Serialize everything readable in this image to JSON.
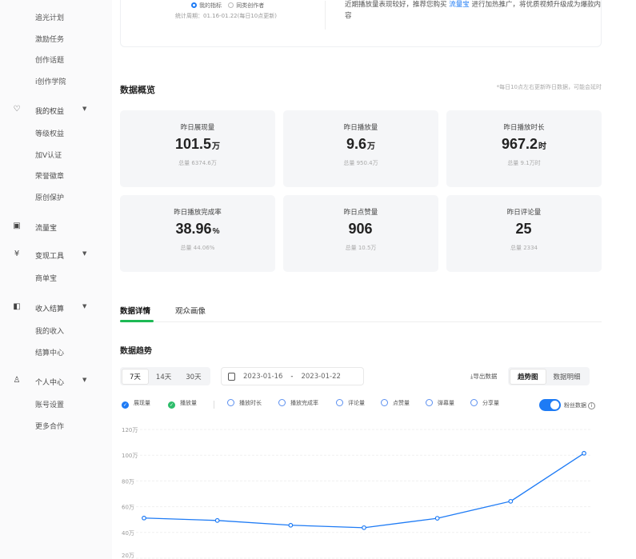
{
  "sidebar": {
    "sub_items_top": [
      "追光计划",
      "激励任务",
      "创作话题",
      "i创作学院"
    ],
    "groups": [
      {
        "label": "我的权益",
        "icon": "diamond-icon",
        "expandable": true,
        "items": [
          "等级权益",
          "加V认证",
          "荣誉徽章",
          "原创保护"
        ]
      },
      {
        "label": "流量宝",
        "icon": "ticket-icon",
        "expandable": false,
        "items": []
      },
      {
        "label": "变现工具",
        "icon": "yen-card-icon",
        "expandable": true,
        "items": [
          "商单宝"
        ]
      },
      {
        "label": "收入结算",
        "icon": "wallet-icon",
        "expandable": true,
        "items": [
          "我的收入",
          "结算中心"
        ]
      },
      {
        "label": "个人中心",
        "icon": "user-icon",
        "expandable": true,
        "items": [
          "账号设置",
          "更多合作"
        ]
      }
    ]
  },
  "top_card": {
    "radio_selected": "我的指标",
    "radio_other": "同类创作者",
    "period": "统计周期：01.16-01.22(每日10点更新)",
    "tip_before": "近期播放量表现较好，推荐您购买",
    "tip_link": "流量宝",
    "tip_after": "进行加热推广，将优质视频升级成为爆款内容"
  },
  "overview": {
    "title": "数据概览",
    "note": "*每日10点左右更新昨日数据，可能会延时",
    "stats": [
      {
        "label": "昨日展现量",
        "value": "101.5",
        "unit": "万",
        "total": "总量 6374.6万"
      },
      {
        "label": "昨日播放量",
        "value": "9.6",
        "unit": "万",
        "total": "总量 950.4万"
      },
      {
        "label": "昨日播放时长",
        "value": "967.2",
        "unit": "时",
        "total": "总量 9.1万时"
      },
      {
        "label": "昨日播放完成率",
        "value": "38.96",
        "unit": "%",
        "total": "总量 44.06%"
      },
      {
        "label": "昨日点赞量",
        "value": "906",
        "unit": "",
        "total": "总量 10.5万"
      },
      {
        "label": "昨日评论量",
        "value": "25",
        "unit": "",
        "total": "总量 2334"
      }
    ]
  },
  "tabs": [
    {
      "label": "数据详情",
      "active": true
    },
    {
      "label": "观众画像",
      "active": false
    }
  ],
  "trend": {
    "title": "数据趋势",
    "ranges": [
      "7天",
      "14天",
      "30天"
    ],
    "range_selected": "7天",
    "date_start": "2023-01-16",
    "date_sep": "-",
    "date_end": "2023-01-22",
    "export": "导出数据",
    "views": [
      "趋势图",
      "数据明细"
    ],
    "view_selected": "趋势图",
    "metrics": [
      {
        "label": "展现量",
        "checked": true,
        "color": "#1e7bf5"
      },
      {
        "label": "播放量",
        "checked": true,
        "color": "#2ebd6b"
      },
      {
        "label": "播放时长",
        "checked": false
      },
      {
        "label": "播放完成率",
        "checked": false
      },
      {
        "label": "评论量",
        "checked": false
      },
      {
        "label": "点赞量",
        "checked": false
      },
      {
        "label": "弹幕量",
        "checked": false
      },
      {
        "label": "分享量",
        "checked": false
      }
    ],
    "fans_toggle": {
      "label": "粉丝数据",
      "on": true
    }
  },
  "chart_data": {
    "type": "line",
    "y_ticks": [
      "120万",
      "100万",
      "80万",
      "60万",
      "40万",
      "20万"
    ],
    "ylim": [
      20,
      120
    ],
    "y_unit": "万",
    "grid": true,
    "series": [
      {
        "values": [
          51.2,
          49.3,
          45.6,
          43.7,
          51.0,
          64.2,
          101.5
        ],
        "color": "#1e7bf5"
      }
    ]
  }
}
